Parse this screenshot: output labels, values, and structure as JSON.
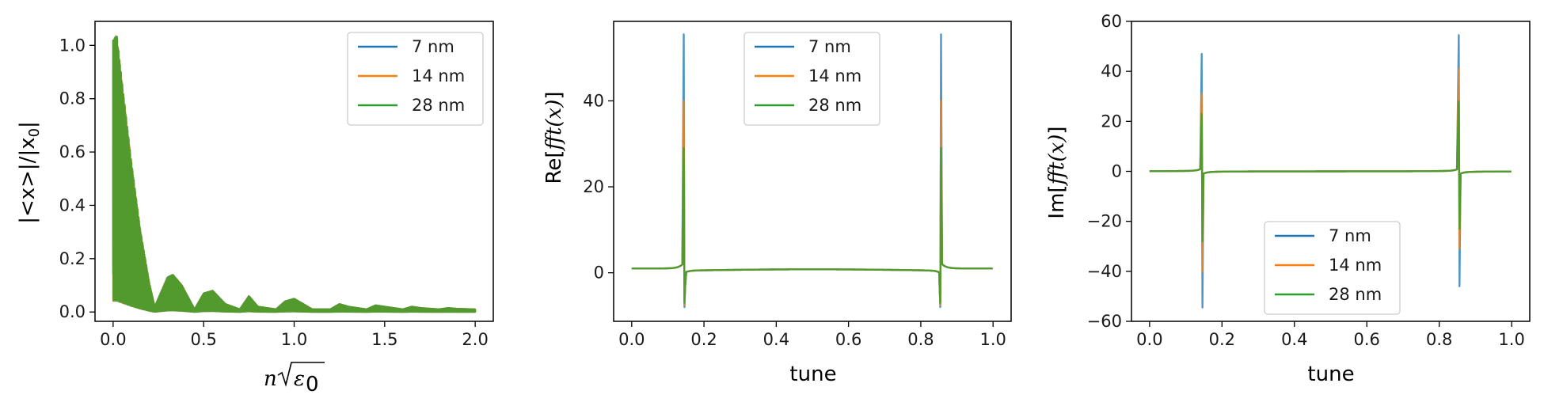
{
  "colors": {
    "s7": "#1f77b4",
    "s14": "#ff7f0e",
    "s28": "#2ca02c"
  },
  "legend": [
    "7 nm",
    "14 nm",
    "28 nm"
  ],
  "panels": {
    "p1": {
      "ylabel_text": "|<x>|/|x",
      "ylabel_sub": "0",
      "ylabel_tail": "|",
      "xlabel_n": "n",
      "xlabel_eps": "ε",
      "xlabel_sub": "0"
    },
    "p2": {
      "ylabel_prefix": "Re[",
      "ylabel_fn": "fft(x)",
      "ylabel_suffix": "]",
      "xlabel": "tune"
    },
    "p3": {
      "ylabel_prefix": "Im[",
      "ylabel_fn": "fft(x)",
      "ylabel_suffix": "]",
      "xlabel": "tune"
    }
  },
  "chart_data": [
    {
      "type": "line",
      "xlim": [
        -0.1,
        2.1
      ],
      "ylim": [
        -0.035,
        1.09
      ],
      "xticks": [
        0.0,
        0.5,
        1.0,
        1.5,
        2.0
      ],
      "xtick_labels": [
        "0.0",
        "0.5",
        "1.0",
        "1.5",
        "2.0"
      ],
      "yticks": [
        0.0,
        0.2,
        0.4,
        0.6,
        0.8,
        1.0
      ],
      "ytick_labels": [
        "0.0",
        "0.2",
        "0.4",
        "0.6",
        "0.8",
        "1.0"
      ],
      "grid": false,
      "legend_position": "upper right",
      "x_envelope": [
        0.0,
        0.02,
        0.05,
        0.1,
        0.15,
        0.2,
        0.23,
        0.3,
        0.33,
        0.38,
        0.45,
        0.5,
        0.55,
        0.62,
        0.7,
        0.75,
        0.8,
        0.9,
        0.95,
        1.0,
        1.05,
        1.1,
        1.2,
        1.25,
        1.3,
        1.4,
        1.45,
        1.5,
        1.6,
        1.65,
        1.7,
        1.8,
        1.85,
        1.9,
        2.0
      ],
      "series": [
        {
          "name": "7 nm",
          "y_envelope": [
            1.02,
            1.04,
            0.85,
            0.55,
            0.3,
            0.1,
            0.02,
            0.13,
            0.14,
            0.1,
            0.01,
            0.07,
            0.08,
            0.03,
            0.01,
            0.06,
            0.02,
            0.01,
            0.04,
            0.05,
            0.03,
            0.01,
            0.01,
            0.03,
            0.02,
            0.01,
            0.025,
            0.02,
            0.01,
            0.02,
            0.015,
            0.01,
            0.015,
            0.012,
            0.01
          ]
        },
        {
          "name": "14 nm",
          "y_envelope": [
            1.02,
            1.04,
            0.86,
            0.57,
            0.31,
            0.11,
            0.02,
            0.13,
            0.14,
            0.1,
            0.01,
            0.07,
            0.08,
            0.03,
            0.01,
            0.06,
            0.02,
            0.01,
            0.04,
            0.05,
            0.03,
            0.01,
            0.01,
            0.03,
            0.02,
            0.01,
            0.025,
            0.02,
            0.01,
            0.02,
            0.015,
            0.01,
            0.015,
            0.012,
            0.01
          ]
        },
        {
          "name": "28 nm",
          "y_envelope": [
            1.02,
            1.04,
            0.86,
            0.57,
            0.31,
            0.11,
            0.02,
            0.13,
            0.14,
            0.1,
            0.01,
            0.07,
            0.08,
            0.03,
            0.01,
            0.06,
            0.02,
            0.01,
            0.04,
            0.05,
            0.03,
            0.01,
            0.01,
            0.03,
            0.02,
            0.01,
            0.025,
            0.02,
            0.01,
            0.02,
            0.015,
            0.01,
            0.015,
            0.012,
            0.01
          ]
        }
      ]
    },
    {
      "type": "line",
      "xlim": [
        -0.05,
        1.05
      ],
      "ylim": [
        -11.3,
        58.5
      ],
      "xticks": [
        0.0,
        0.2,
        0.4,
        0.6,
        0.8,
        1.0
      ],
      "xtick_labels": [
        "0.0",
        "0.2",
        "0.4",
        "0.6",
        "0.8",
        "1.0"
      ],
      "yticks": [
        0,
        20,
        40
      ],
      "ytick_labels": [
        "0",
        "20",
        "40"
      ],
      "grid": false,
      "legend_position": "upper center",
      "resonances": [
        0.145,
        0.855
      ],
      "series": [
        {
          "name": "7 nm",
          "baseline": [
            1.0,
            0.5,
            0.5,
            1.0
          ],
          "peak_max": 55.5,
          "peak_min": -8.0
        },
        {
          "name": "14 nm",
          "baseline": [
            1.0,
            0.5,
            0.5,
            1.0
          ],
          "peak_max": 40.0,
          "peak_min": -7.5
        },
        {
          "name": "28 nm",
          "baseline": [
            1.0,
            0.5,
            0.5,
            1.0
          ],
          "peak_max": 29.0,
          "peak_min": -7.0
        }
      ]
    },
    {
      "type": "line",
      "xlim": [
        -0.05,
        1.05
      ],
      "ylim": [
        -60,
        60
      ],
      "xticks": [
        0.0,
        0.2,
        0.4,
        0.6,
        0.8,
        1.0
      ],
      "xtick_labels": [
        "0.0",
        "0.2",
        "0.4",
        "0.6",
        "0.8",
        "1.0"
      ],
      "yticks": [
        -60,
        -40,
        -20,
        0,
        20,
        40,
        60
      ],
      "ytick_labels": [
        "−60",
        "−40",
        "−20",
        "0",
        "20",
        "40",
        "60"
      ],
      "grid": false,
      "legend_position": "lower center",
      "resonances": [
        0.145,
        0.855
      ],
      "series": [
        {
          "name": "7 nm",
          "peak1_max": 47.0,
          "peak1_min": -54.5,
          "peak2_max": 54.5,
          "peak2_min": -46.0
        },
        {
          "name": "14 nm",
          "peak1_max": 31.0,
          "peak1_min": -40.0,
          "peak2_max": 41.0,
          "peak2_min": -31.0
        },
        {
          "name": "28 nm",
          "peak1_max": 23.0,
          "peak1_min": -28.0,
          "peak2_max": 28.0,
          "peak2_min": -23.0
        }
      ]
    }
  ]
}
